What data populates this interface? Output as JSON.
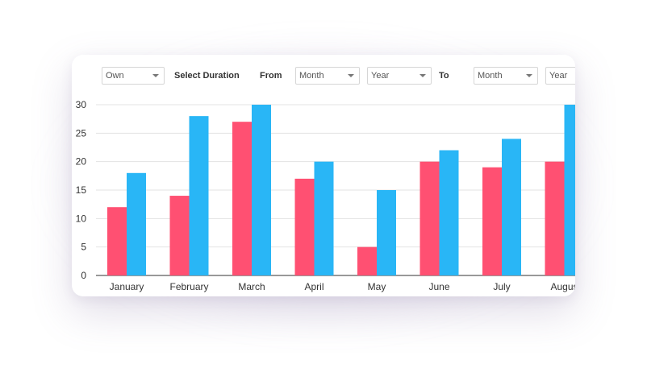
{
  "filters": {
    "owner_select": "Own",
    "duration_label": "Select Duration",
    "from_label": "From",
    "from_month": "Month",
    "from_year": "Year",
    "to_label": "To",
    "to_month": "Month",
    "to_year": "Year"
  },
  "colors": {
    "series_a": "#ff5072",
    "series_b": "#29b6f6",
    "grid": "#e3e3e3",
    "axis": "#333333"
  },
  "chart_data": {
    "type": "bar",
    "categories": [
      "January",
      "February",
      "March",
      "April",
      "May",
      "June",
      "July",
      "Augus"
    ],
    "series": [
      {
        "values": [
          12,
          14,
          27,
          17,
          5,
          20,
          19,
          20
        ]
      },
      {
        "values": [
          18,
          28,
          30,
          20,
          15,
          22,
          24,
          30
        ]
      }
    ],
    "title": "",
    "xlabel": "",
    "ylabel": "",
    "ylim": [
      0,
      30
    ],
    "yticks": [
      0,
      5,
      10,
      15,
      20,
      25,
      30
    ],
    "grid": true,
    "legend": "none"
  }
}
